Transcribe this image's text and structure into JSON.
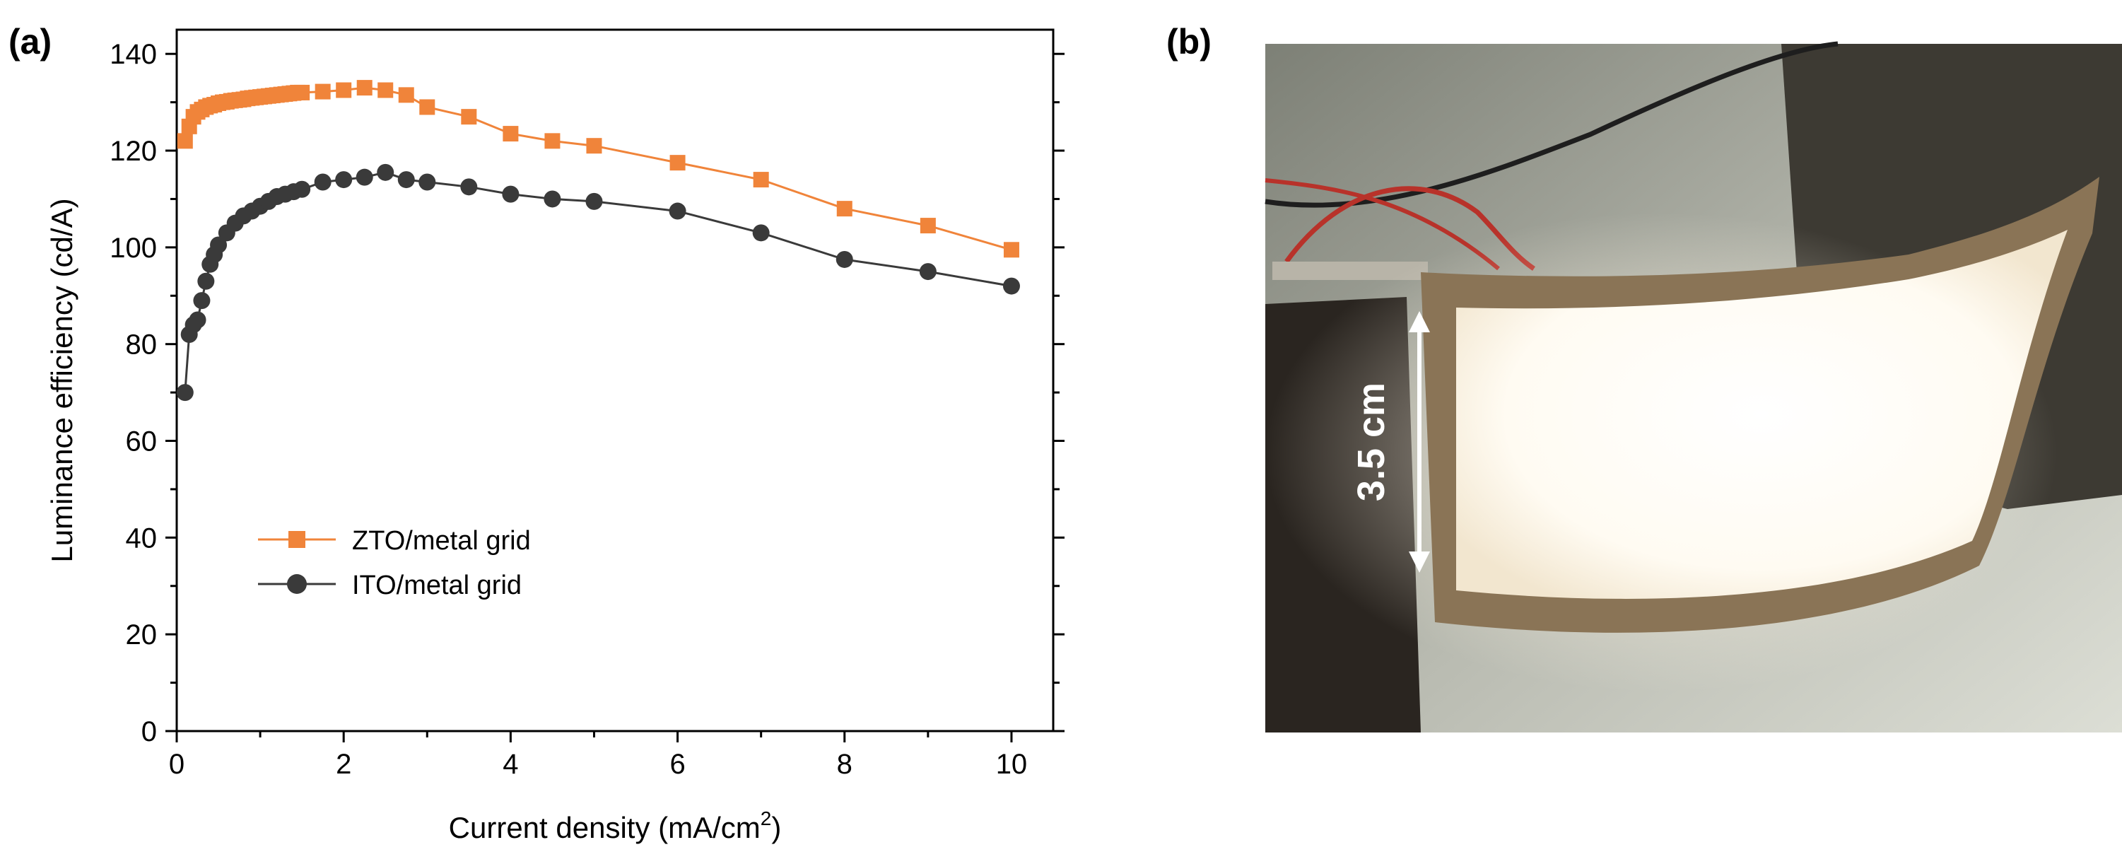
{
  "panels": {
    "a_label": "(a)",
    "b_label": "(b)"
  },
  "chart_data": {
    "type": "line",
    "xlabel_main": "Current density (mA/cm",
    "xlabel_sup": "2",
    "xlabel_close": ")",
    "ylabel": "Luminance efficiency (cd/A)",
    "xlim": [
      0,
      10.5
    ],
    "ylim": [
      0,
      145
    ],
    "xticks": [
      0,
      2,
      4,
      6,
      8,
      10
    ],
    "yticks": [
      0,
      20,
      40,
      60,
      80,
      100,
      120,
      140
    ],
    "legend_position": "center-left",
    "grid": false,
    "series": [
      {
        "name": "ZTO/metal grid",
        "color": "#F0843A",
        "marker": "square",
        "x": [
          0.1,
          0.15,
          0.2,
          0.25,
          0.3,
          0.35,
          0.4,
          0.45,
          0.5,
          0.55,
          0.6,
          0.65,
          0.7,
          0.75,
          0.8,
          0.85,
          0.9,
          0.95,
          1.0,
          1.05,
          1.1,
          1.15,
          1.2,
          1.25,
          1.3,
          1.35,
          1.4,
          1.45,
          1.5,
          1.75,
          2.0,
          2.25,
          2.5,
          2.75,
          3.0,
          3.5,
          4.0,
          4.5,
          5.0,
          6.0,
          7.0,
          8.0,
          9.0,
          10.0
        ],
        "y": [
          122,
          125,
          127,
          128,
          128.5,
          129,
          129.3,
          129.5,
          129.8,
          130,
          130.1,
          130.3,
          130.4,
          130.5,
          130.6,
          130.8,
          130.9,
          131,
          131.1,
          131.2,
          131.3,
          131.4,
          131.5,
          131.6,
          131.7,
          131.8,
          131.9,
          132,
          132,
          132.2,
          132.5,
          133,
          132.5,
          131.5,
          129,
          127,
          123.5,
          122,
          121,
          117.5,
          114,
          108,
          104.5,
          99.5
        ]
      },
      {
        "name": "ITO/metal grid",
        "color": "#3A3A3A",
        "marker": "circle",
        "x": [
          0.1,
          0.15,
          0.2,
          0.25,
          0.3,
          0.35,
          0.4,
          0.45,
          0.5,
          0.6,
          0.7,
          0.8,
          0.9,
          1.0,
          1.1,
          1.2,
          1.3,
          1.4,
          1.5,
          1.75,
          2.0,
          2.25,
          2.5,
          2.75,
          3.0,
          3.5,
          4.0,
          4.5,
          5.0,
          6.0,
          7.0,
          8.0,
          9.0,
          10.0
        ],
        "y": [
          70,
          82,
          84,
          85,
          89,
          93,
          96.5,
          98.5,
          100.5,
          103,
          105,
          106.5,
          107.5,
          108.5,
          109.5,
          110.5,
          111,
          111.5,
          112,
          113.5,
          114,
          114.5,
          115.5,
          114,
          113.5,
          112.5,
          111,
          110,
          109.5,
          107.5,
          103,
          97.5,
          95,
          92
        ]
      }
    ]
  },
  "photo": {
    "dimension_label": "3.5 cm",
    "colors": {
      "background_top": "#8f9288",
      "background_bottom": "#d4d6cc",
      "panel_glow": "#fffaf0",
      "frame": "#7c6a52",
      "wire_red": "#b8322a",
      "wire_black": "#1e1e1e",
      "stand": "#2a2520",
      "arrow": "#ffffff"
    }
  }
}
